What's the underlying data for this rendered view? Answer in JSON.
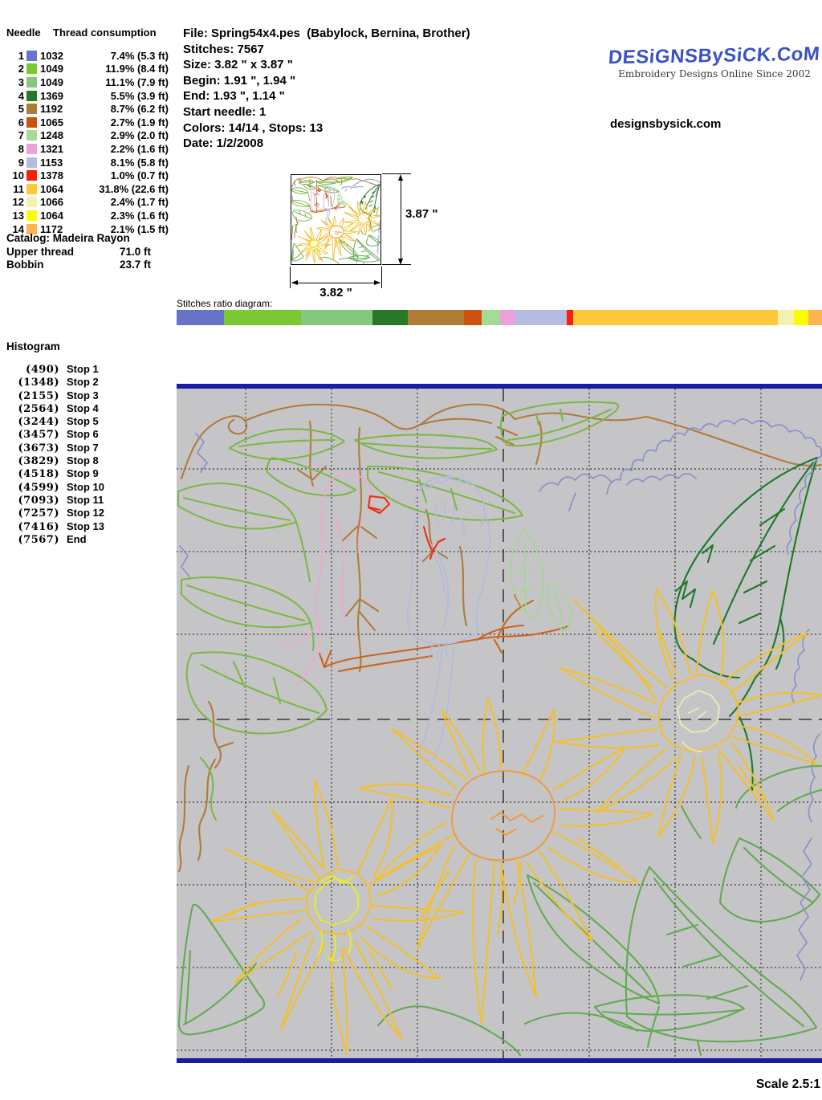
{
  "needle_table": {
    "col1": "Needle",
    "col2": "Thread consumption",
    "rows": [
      {
        "needle": "1",
        "thread": "1032",
        "color": "#6673c8",
        "pct": 7.4,
        "consumption": "7.4% (5.3 ft)"
      },
      {
        "needle": "2",
        "thread": "1049",
        "color": "#7cc832",
        "pct": 11.9,
        "consumption": "11.9% (8.4 ft)"
      },
      {
        "needle": "3",
        "thread": "1049",
        "color": "#84c87c",
        "pct": 11.1,
        "consumption": "11.1% (7.9 ft)"
      },
      {
        "needle": "4",
        "thread": "1369",
        "color": "#287828",
        "pct": 5.5,
        "consumption": "5.5% (3.9 ft)"
      },
      {
        "needle": "5",
        "thread": "1192",
        "color": "#b07c34",
        "pct": 8.7,
        "consumption": "8.7% (6.2 ft)"
      },
      {
        "needle": "6",
        "thread": "1065",
        "color": "#cc5210",
        "pct": 2.7,
        "consumption": "2.7% (1.9 ft)"
      },
      {
        "needle": "7",
        "thread": "1248",
        "color": "#a4dc94",
        "pct": 2.9,
        "consumption": "2.9% (2.0 ft)"
      },
      {
        "needle": "8",
        "thread": "1321",
        "color": "#eca0dc",
        "pct": 2.2,
        "consumption": "2.2% (1.6 ft)"
      },
      {
        "needle": "9",
        "thread": "1153",
        "color": "#b4bce0",
        "pct": 8.1,
        "consumption": "8.1% (5.8 ft)"
      },
      {
        "needle": "10",
        "thread": "1378",
        "color": "#fc2000",
        "pct": 1.0,
        "consumption": "1.0% (0.7 ft)"
      },
      {
        "needle": "11",
        "thread": "1064",
        "color": "#fcc83c",
        "pct": 31.8,
        "consumption": "31.8% (22.6 ft)"
      },
      {
        "needle": "12",
        "thread": "1066",
        "color": "#f4f0b0",
        "pct": 2.4,
        "consumption": "2.4% (1.7 ft)"
      },
      {
        "needle": "13",
        "thread": "1064",
        "color": "#fcfc00",
        "pct": 2.3,
        "consumption": "2.3% (1.6 ft)"
      },
      {
        "needle": "14",
        "thread": "1172",
        "color": "#fcb450",
        "pct": 2.1,
        "consumption": "2.1% (1.5 ft)"
      }
    ]
  },
  "file_info": {
    "lines": [
      "File: Spring54x4.pes  (Babylock, Bernina, Brother)",
      "Stitches: 7567",
      "Size: 3.82 \" x 3.87 \"",
      "Begin: 1.91 \", 1.94 \"",
      "End: 1.93 \", 1.14 \"",
      "Start needle: 1",
      "Colors: 14/14 , Stops: 13",
      "Date: 1/2/2008"
    ]
  },
  "logo": {
    "title": "DESiGNSBySiCK.CoM",
    "tagline": "Embroidery Designs Online Since 2002",
    "site": "designsbysick.com",
    "color": "#3a52c4"
  },
  "catalog": {
    "title": "Catalog: Madeira Rayon",
    "rows": [
      {
        "label": "Upper thread",
        "value": "71.0 ft"
      },
      {
        "label": "Bobbin",
        "value": "23.7 ft"
      }
    ]
  },
  "thumbnail": {
    "width_label": "3.82 \"",
    "height_label": "3.87 \""
  },
  "ratio_diagram": {
    "label": "Stitches ratio diagram:"
  },
  "histogram": {
    "title": "Histogram",
    "stops": [
      {
        "count": "(490)",
        "label": "Stop 1"
      },
      {
        "count": "(1348)",
        "label": "Stop 2"
      },
      {
        "count": "(2155)",
        "label": "Stop 3"
      },
      {
        "count": "(2564)",
        "label": "Stop 4"
      },
      {
        "count": "(3244)",
        "label": "Stop 5"
      },
      {
        "count": "(3457)",
        "label": "Stop 6"
      },
      {
        "count": "(3673)",
        "label": "Stop 7"
      },
      {
        "count": "(3829)",
        "label": "Stop 8"
      },
      {
        "count": "(4518)",
        "label": "Stop 9"
      },
      {
        "count": "(4599)",
        "label": "Stop 10"
      },
      {
        "count": "(7093)",
        "label": "Stop 11"
      },
      {
        "count": "(7257)",
        "label": "Stop 12"
      },
      {
        "count": "(7416)",
        "label": "Stop 13"
      },
      {
        "count": "(7567)",
        "label": "End"
      }
    ]
  },
  "canvas": {
    "bar_color": "#1b1ba8",
    "bg_color": "#c5c5c8"
  },
  "scale_label": "Scale 2.5:1"
}
